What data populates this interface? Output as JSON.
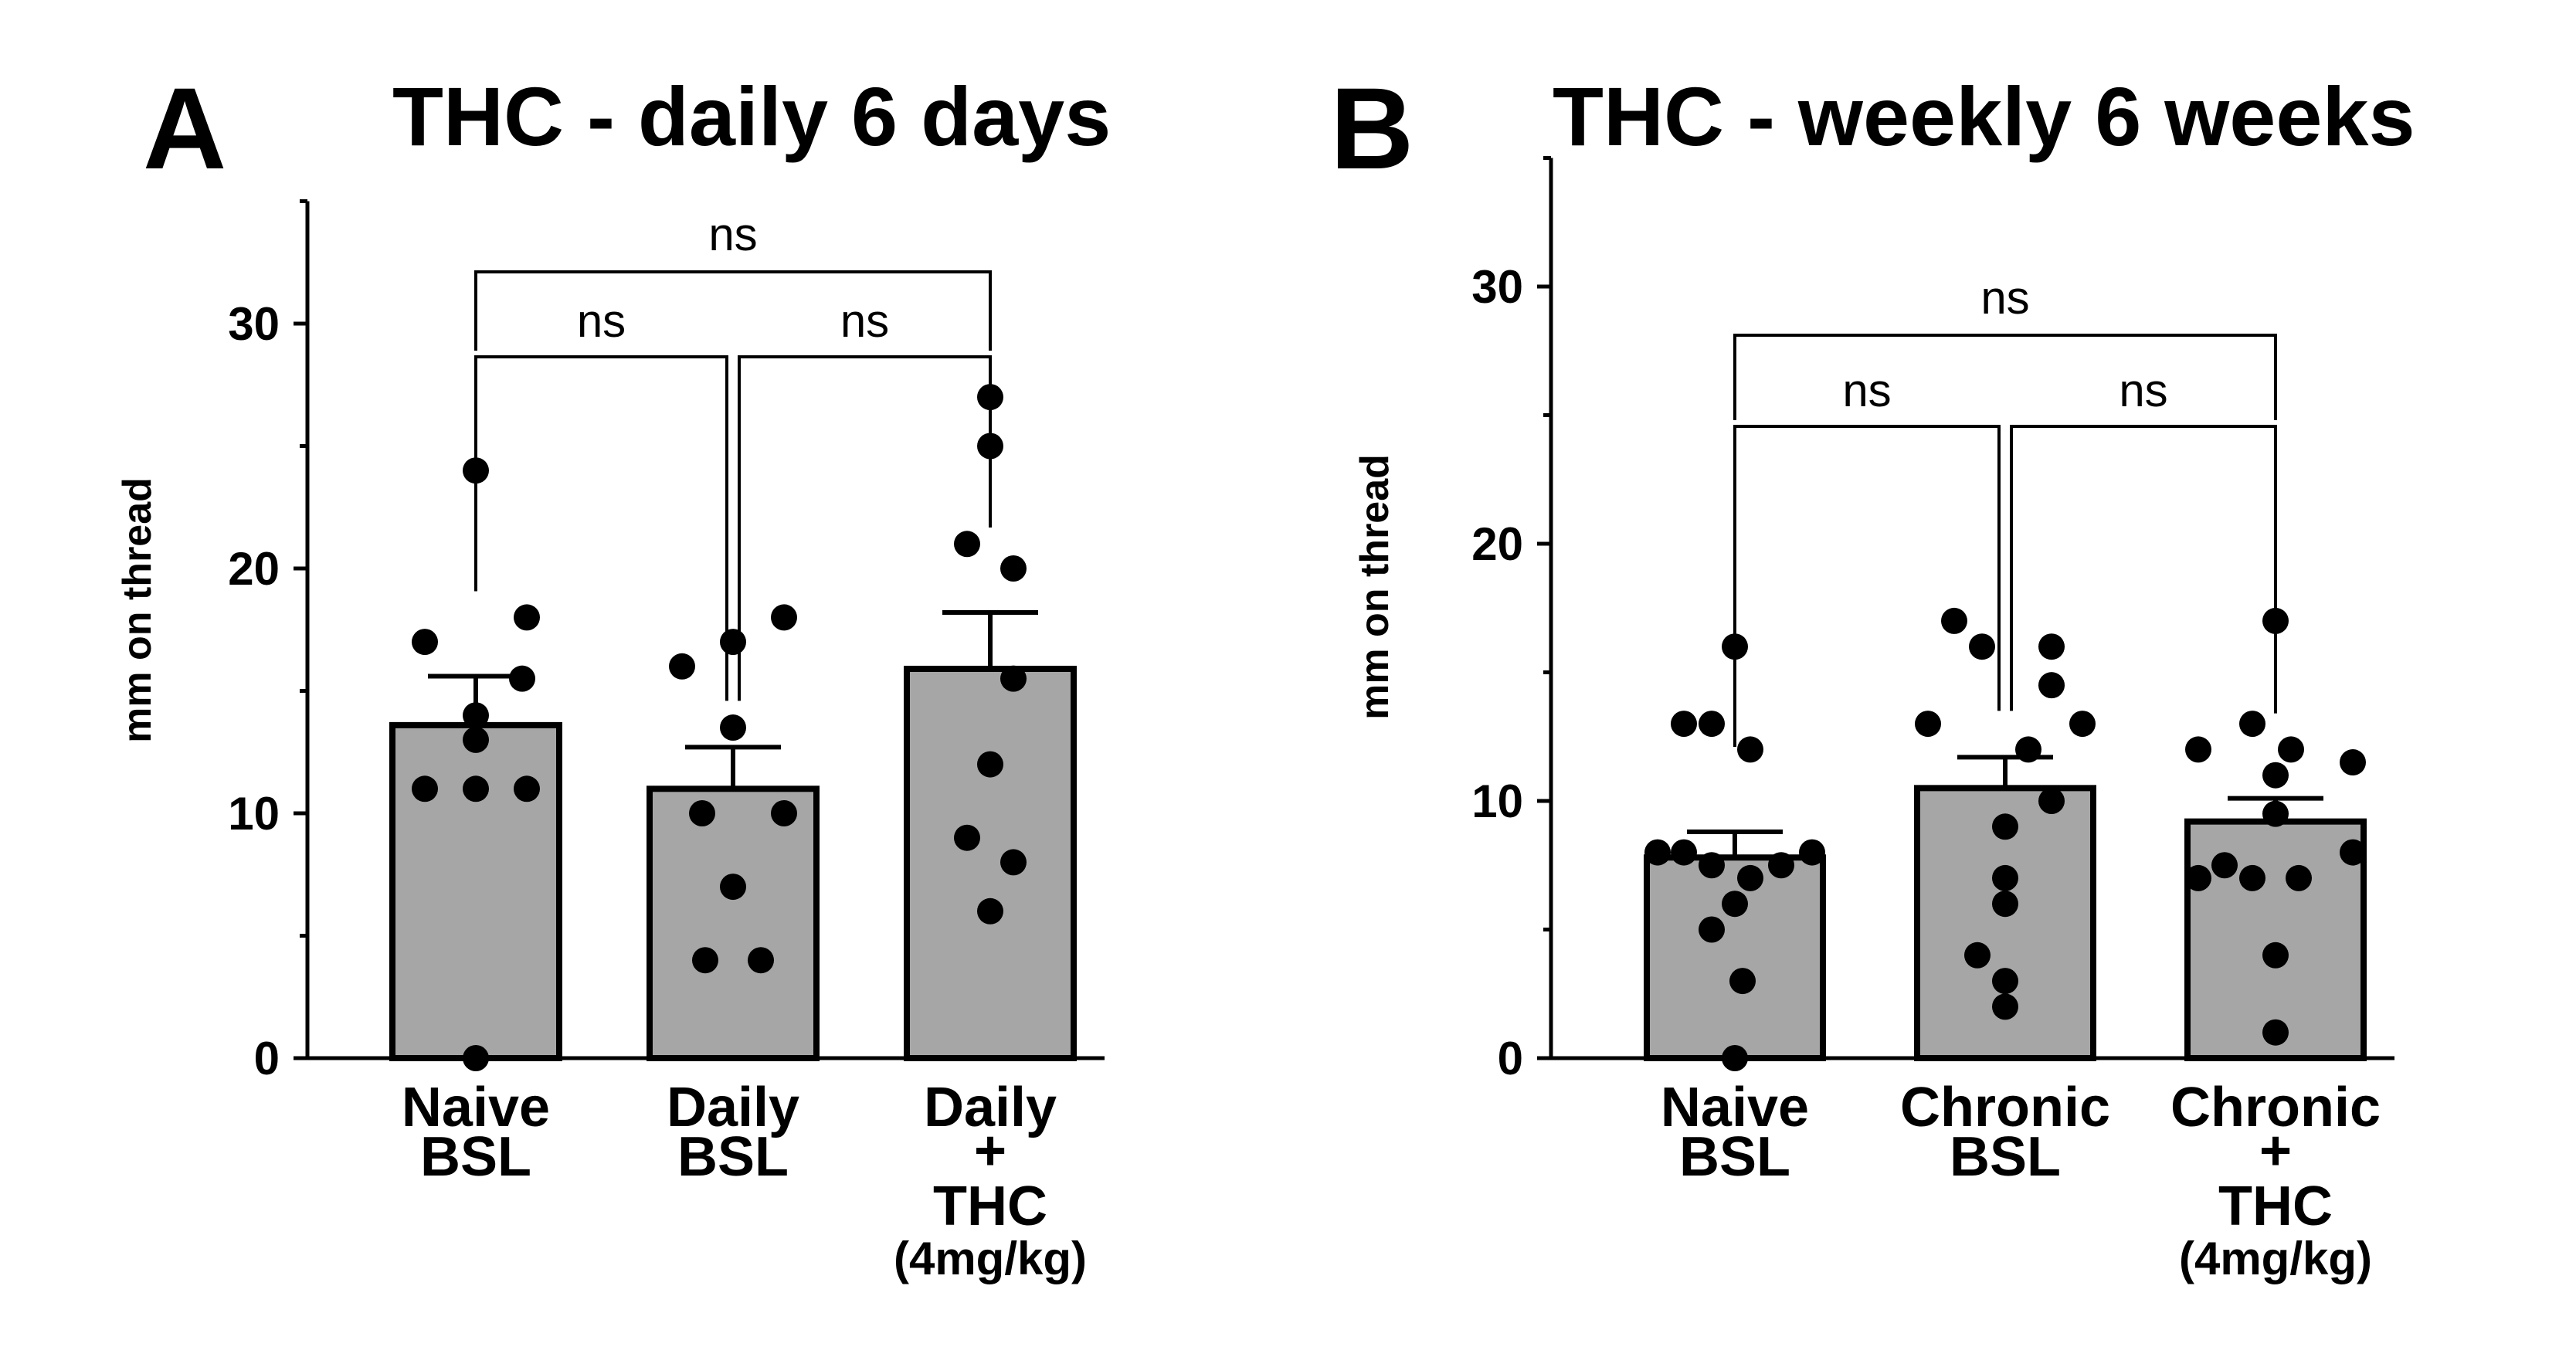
{
  "chart_data": [
    {
      "type": "bar",
      "panel_label": "A",
      "title": "THC - daily 6 days",
      "xlabel": "",
      "ylabel": "mm on thread",
      "ylim": [
        0,
        35
      ],
      "yticks": [
        "0",
        "10",
        "20",
        "30"
      ],
      "categories": [
        [
          "Naive",
          "BSL"
        ],
        [
          "Daily",
          "BSL"
        ],
        [
          "Daily",
          "+",
          "THC",
          "(4mg/kg)"
        ]
      ],
      "values": [
        13.6,
        11.0,
        15.9
      ],
      "sem": [
        2.0,
        1.7,
        2.3
      ],
      "points": [
        [
          24,
          17,
          18,
          15.5,
          14,
          13,
          11,
          11,
          11,
          0
        ],
        [
          16,
          17,
          18,
          13.5,
          10,
          10,
          7,
          4,
          4
        ],
        [
          27,
          25,
          21,
          20,
          15.5,
          12,
          9,
          8,
          6
        ]
      ],
      "comparisons": [
        {
          "groups": [
            0,
            1
          ],
          "label": "ns"
        },
        {
          "groups": [
            1,
            2
          ],
          "label": "ns"
        },
        {
          "groups": [
            0,
            2
          ],
          "label": "ns"
        }
      ]
    },
    {
      "type": "bar",
      "panel_label": "B",
      "title": "THC - weekly 6 weeks",
      "xlabel": "",
      "ylabel": "mm on thread",
      "ylim": [
        0,
        35
      ],
      "yticks": [
        "0",
        "10",
        "20",
        "30"
      ],
      "categories": [
        [
          "Naive",
          "BSL"
        ],
        [
          "Chronic",
          "BSL"
        ],
        [
          "Chronic",
          "+",
          "THC",
          "(4mg/kg)"
        ]
      ],
      "values": [
        7.8,
        10.5,
        9.2
      ],
      "sem": [
        1.0,
        1.2,
        0.9
      ],
      "points": [
        [
          16,
          13,
          13,
          12,
          8,
          8,
          8,
          7.5,
          7.5,
          7,
          6,
          5,
          3,
          0
        ],
        [
          17,
          16,
          16,
          14.5,
          13,
          13,
          12,
          10,
          9,
          7,
          6,
          4,
          3,
          2
        ],
        [
          17,
          13,
          12,
          12,
          11.5,
          11,
          9.5,
          8,
          7.5,
          7,
          7,
          7,
          4,
          1
        ]
      ],
      "comparisons": [
        {
          "groups": [
            0,
            1
          ],
          "label": "ns"
        },
        {
          "groups": [
            1,
            2
          ],
          "label": "ns"
        },
        {
          "groups": [
            0,
            2
          ],
          "label": "ns"
        }
      ]
    }
  ]
}
